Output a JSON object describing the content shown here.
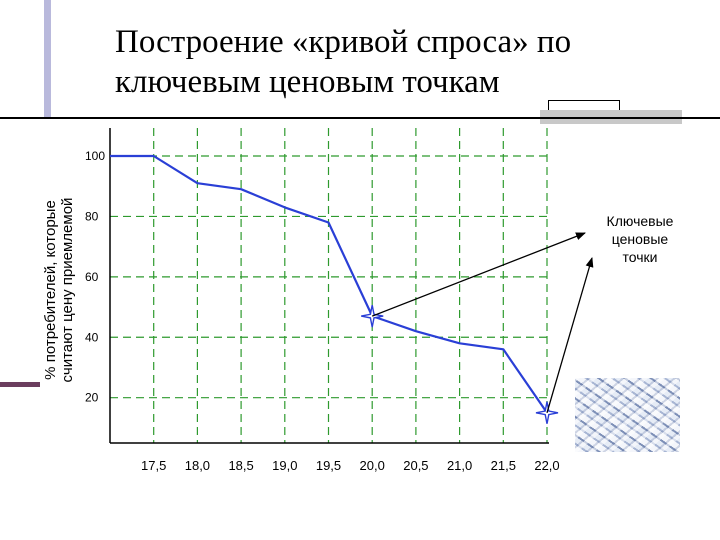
{
  "title_line1": "Построение «кривой спроса» по",
  "title_line2": "ключевым ценовым точкам",
  "chart_data": {
    "type": "line",
    "title": "Построение «кривой спроса» по ключевым ценовым точкам",
    "ylabel_line1": "% потребителей, которые",
    "ylabel_line2": "считают цену приемлемой",
    "xlabel": "",
    "x_ticks": [
      "17,5",
      "18,0",
      "18,5",
      "19,0",
      "19,5",
      "20,0",
      "20,5",
      "21,0",
      "21,5",
      "22,0"
    ],
    "y_ticks": [
      "100",
      "80",
      "60",
      "40",
      "20"
    ],
    "y_tick_values": [
      100,
      80,
      60,
      40,
      20
    ],
    "ylim": [
      5,
      100
    ],
    "xlim": [
      17.0,
      22.0
    ],
    "grid": true,
    "series": [
      {
        "points": [
          [
            17.0,
            100
          ],
          [
            17.5,
            100
          ],
          [
            18.0,
            91
          ],
          [
            18.5,
            89
          ],
          [
            19.0,
            83
          ],
          [
            19.5,
            78
          ],
          [
            20.0,
            47
          ],
          [
            20.5,
            42
          ],
          [
            21.0,
            38
          ],
          [
            21.5,
            36
          ],
          [
            22.0,
            15
          ]
        ],
        "color": "#2a3fd6"
      }
    ],
    "key_points": [
      [
        20.0,
        47
      ],
      [
        22.0,
        15
      ]
    ],
    "annotation_line1": "Ключевые",
    "annotation_line2": "ценовые",
    "annotation_line3": "точки"
  },
  "colors": {
    "line": "#2a3fd6",
    "grid": "#2e9a2e",
    "axis": "#000000"
  }
}
